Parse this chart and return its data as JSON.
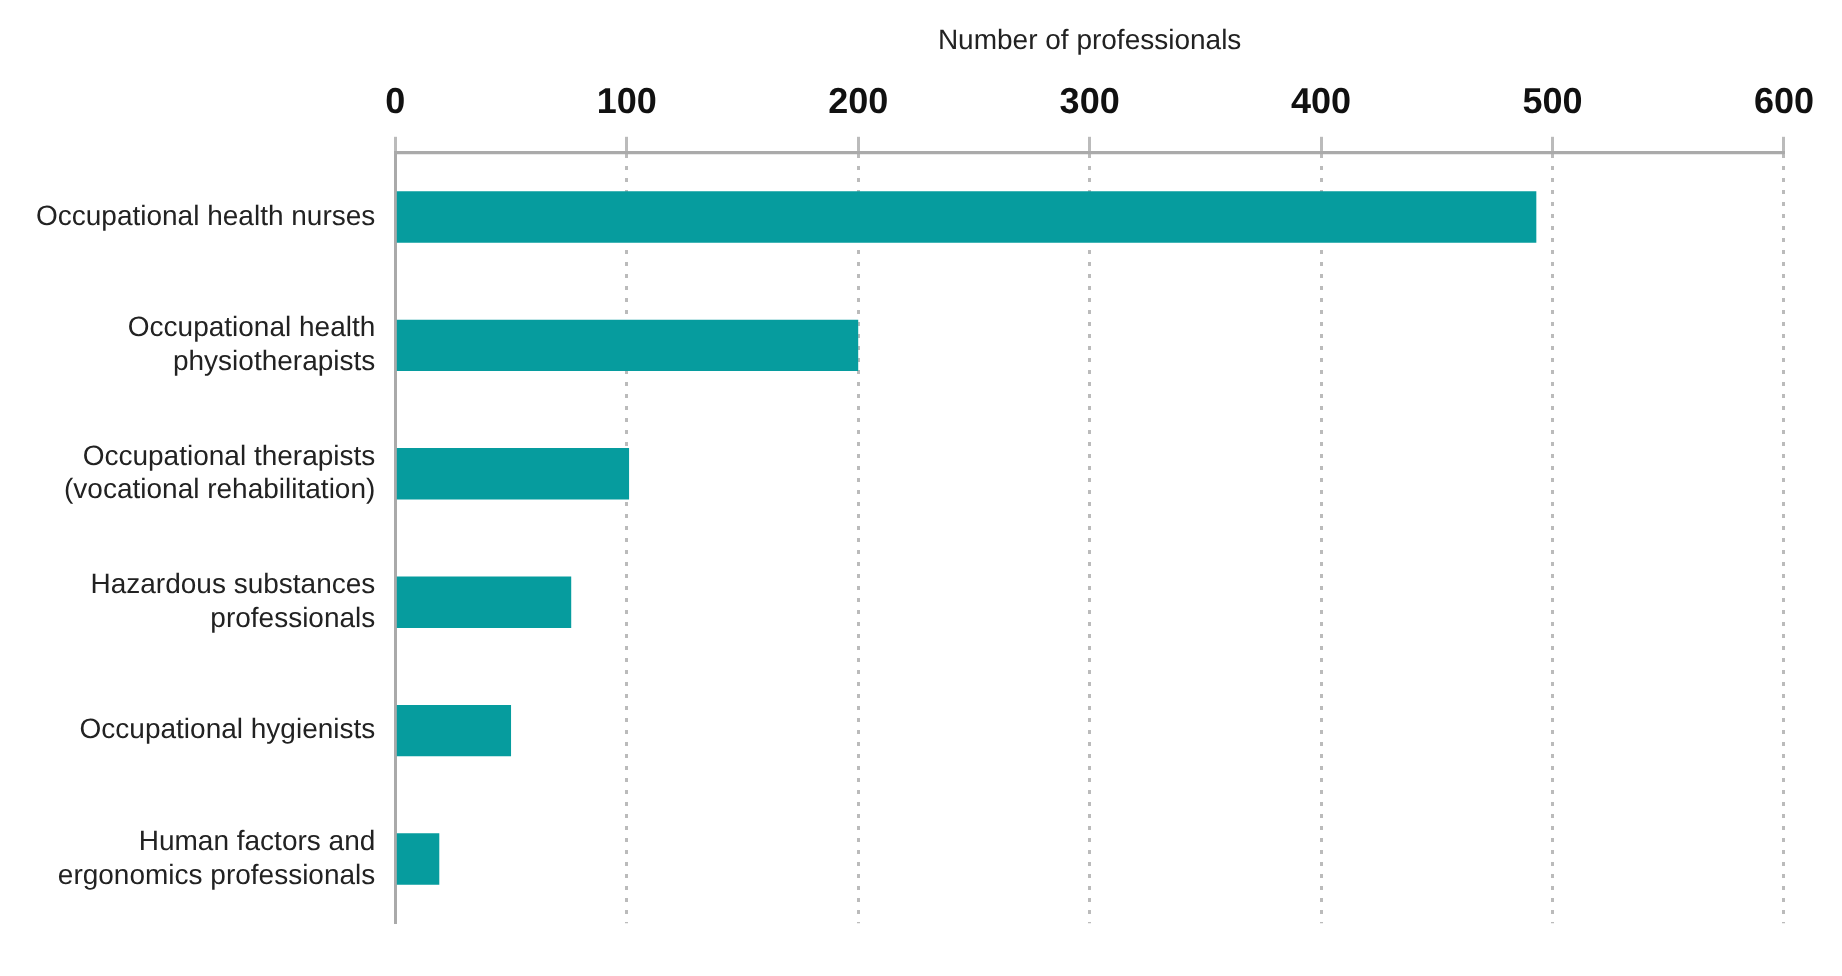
{
  "chart_data": {
    "type": "bar",
    "orientation": "horizontal",
    "xlabel": "Number of professionals",
    "categories": [
      "Occupational health nurses",
      "Occupational health physiotherapists",
      "Occupational therapists (vocational rehabilitation)",
      "Hazardous substances professionals",
      "Occupational hygienists",
      "Human factors and ergonomics professionals"
    ],
    "values": [
      493,
      200,
      101,
      76,
      50,
      19
    ],
    "color": "#069c9e",
    "xlim": [
      0,
      600
    ],
    "xticks": [
      0,
      100,
      200,
      300,
      400,
      500,
      600
    ],
    "grid": "x",
    "legend": false
  }
}
